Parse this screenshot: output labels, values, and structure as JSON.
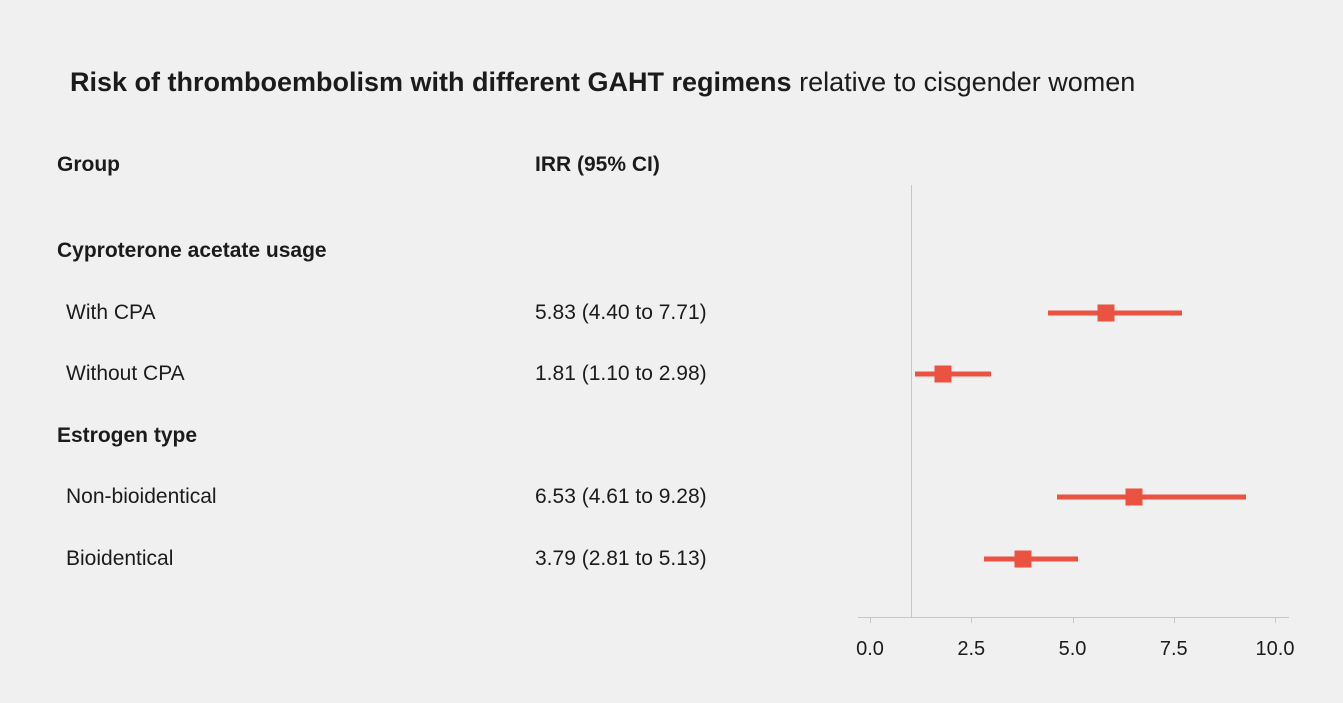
{
  "title": {
    "main": "Risk of thromboembolism with different GAHT regimens",
    "suffix": " relative to cisgender women"
  },
  "columns": {
    "group": "Group",
    "irr": "IRR (95% CI)"
  },
  "chart_data": {
    "type": "forest",
    "title": "Risk of thromboembolism with different GAHT regimens relative to cisgender women",
    "xlabel": "",
    "ylabel": "",
    "axis": {
      "min": 0.0,
      "max": 10.0,
      "tick_values": [
        0.0,
        2.5,
        5.0,
        7.5,
        10.0
      ],
      "tick_labels": [
        "0.0",
        "2.5",
        "5.0",
        "7.5",
        "10.0"
      ],
      "reference_line": 1.0
    },
    "marker_color": "#ea5242",
    "groups": [
      {
        "heading": "Cyproterone acetate usage",
        "rows": [
          {
            "label": "With CPA",
            "irr_text": "5.83 (4.40 to 7.71)",
            "est": 5.83,
            "lo": 4.4,
            "hi": 7.71
          },
          {
            "label": "Without CPA",
            "irr_text": "1.81 (1.10 to 2.98)",
            "est": 1.81,
            "lo": 1.1,
            "hi": 2.98
          }
        ]
      },
      {
        "heading": "Estrogen type",
        "rows": [
          {
            "label": "Non-bioidentical",
            "irr_text": "6.53 (4.61 to 9.28)",
            "est": 6.53,
            "lo": 4.61,
            "hi": 9.28
          },
          {
            "label": "Bioidentical",
            "irr_text": "3.79 (2.81 to 5.13)",
            "est": 3.79,
            "lo": 2.81,
            "hi": 5.13
          }
        ]
      }
    ]
  }
}
